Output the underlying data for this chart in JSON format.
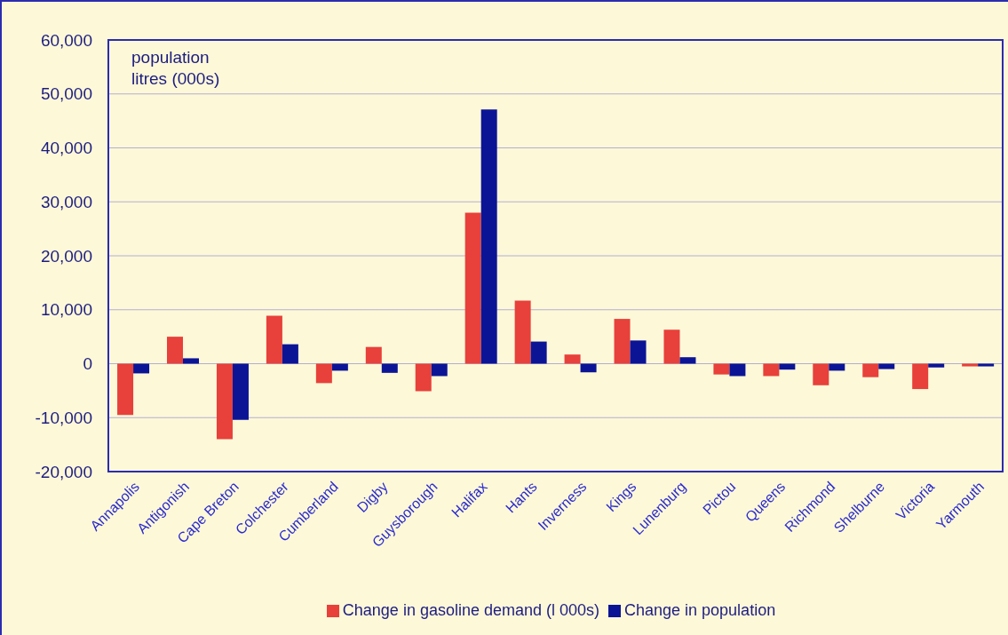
{
  "chart_data": {
    "type": "bar",
    "annotations": [
      "population",
      "litres (000s)"
    ],
    "categories": [
      "Annapolis",
      "Antigonish",
      "Cape Breton",
      "Colchester",
      "Cumberland",
      "Digby",
      "Guysborough",
      "Halifax",
      "Hants",
      "Inverness",
      "Kings",
      "Lunenburg",
      "Pictou",
      "Queens",
      "Richmond",
      "Shelburne",
      "Victoria",
      "Yarmouth"
    ],
    "series": [
      {
        "name": "Change in gasoline demand (l 000s)",
        "color": "#e8403a",
        "values": [
          -9500,
          5000,
          -14000,
          8900,
          -3600,
          3100,
          -5100,
          28000,
          11700,
          1700,
          8300,
          6300,
          -2000,
          -2300,
          -4000,
          -2500,
          -4700,
          -500
        ]
      },
      {
        "name": "Change in population",
        "color": "#0c1496",
        "values": [
          -1800,
          1000,
          -10400,
          3600,
          -1300,
          -1700,
          -2300,
          47100,
          4100,
          -1600,
          4300,
          1200,
          -2300,
          -1100,
          -1300,
          -1000,
          -700,
          -500
        ]
      }
    ],
    "ylim": [
      -20000,
      60000
    ],
    "yticks": [
      {
        "value": -20000,
        "label": "-20,000"
      },
      {
        "value": -10000,
        "label": "-10,000"
      },
      0,
      {
        "value": 10000,
        "label": "10,000"
      },
      {
        "value": 20000,
        "label": "20,000"
      },
      {
        "value": 30000,
        "label": "30,000"
      },
      {
        "value": 40000,
        "label": "40,000"
      },
      {
        "value": 50000,
        "label": "50,000"
      },
      {
        "value": 60000,
        "label": "60,000"
      }
    ],
    "grid": "y",
    "legend": "bottom"
  }
}
